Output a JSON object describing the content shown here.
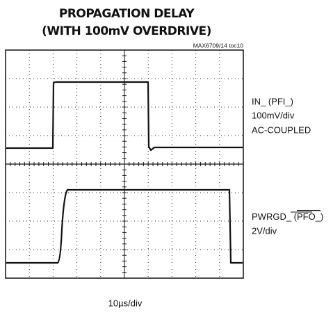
{
  "header": {
    "title_lines": [
      "PROPAGATION DELAY",
      "(WITH 100mV OVERDRIVE)"
    ],
    "tag": "MAX6709/14 toc10"
  },
  "channels": [
    {
      "label_parts": [
        "IN_ (PFI_)"
      ],
      "scale": "100mV/div",
      "coupling": "AC-COUPLED"
    },
    {
      "label_parts": [
        "PWRGD_ (",
        "PFO_",
        ")"
      ],
      "scale": "2V/div"
    }
  ],
  "timebase": "10µs/div"
}
